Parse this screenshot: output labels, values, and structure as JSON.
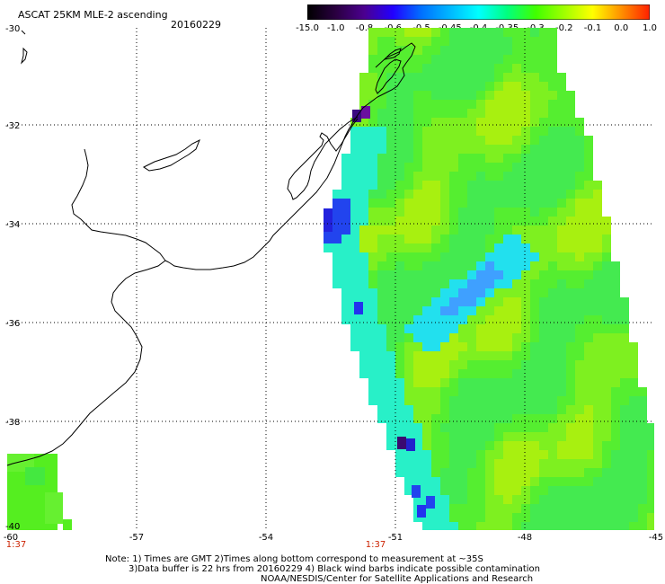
{
  "header": {
    "title": "ASCAT 25KM MLE-2 ascending",
    "date": "20160229"
  },
  "colorbar": {
    "ticks": [
      "-15.0",
      "-1.0",
      "-0.8",
      "-0.6",
      "-0.5",
      "-0.45",
      "-0.4",
      "-0.35",
      "-0.3",
      "-0.2",
      "-0.1",
      "0.0",
      "1.0"
    ],
    "colors": [
      "#000000",
      "#2a0040",
      "#4b0090",
      "#2200ff",
      "#0070ff",
      "#00b8ff",
      "#00ffff",
      "#00ff80",
      "#40ff00",
      "#a0ff00",
      "#ffff00",
      "#ff9000",
      "#ff2000"
    ]
  },
  "map": {
    "lat_labels": [
      "-30",
      "-32",
      "-34",
      "-36",
      "-38",
      "-40"
    ],
    "lon_labels": [
      "-60",
      "-57",
      "-54",
      "-51",
      "-48",
      "-45"
    ],
    "time_labels": [
      "1:37",
      "1:37"
    ]
  },
  "notes": {
    "line1": "Note: 1) Times are GMT 2)Times along bottom correspond to measurement at ~35S",
    "line2": "3)Data buffer is 22 hrs from 20160229 4) Black wind barbs indicate possible contamination",
    "line3": "NOAA/NESDIS/Center for Satellite Applications and Research"
  }
}
